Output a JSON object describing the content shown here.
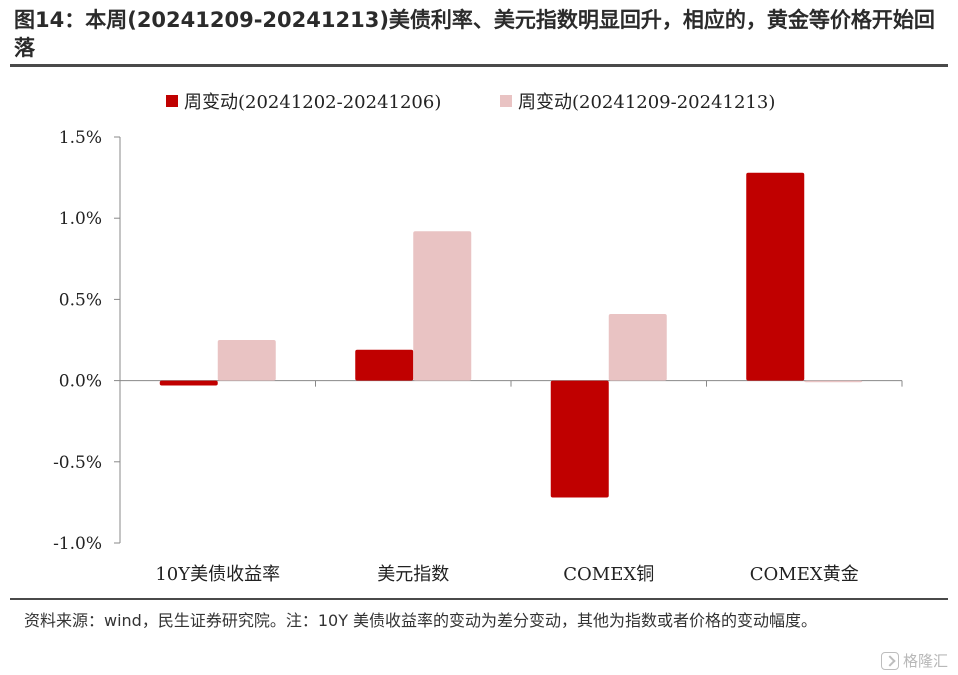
{
  "title": "图14：本周(20241209-20241213)美债利率、美元指数明显回升，相应的，黄金等价格开始回落",
  "source": "资料来源：wind，民生证券研究院。注：10Y 美债收益率的变动为差分变动，其他为指数或者价格的变动幅度。",
  "watermark": "格隆汇",
  "chart_data": {
    "type": "bar",
    "categories": [
      "10Y美债收益率",
      "美元指数",
      "COMEX铜",
      "COMEX黄金"
    ],
    "series": [
      {
        "name": "周变动(20241202-20241206)",
        "color": "#c00000",
        "values": [
          -0.03,
          0.19,
          -0.72,
          1.28
        ]
      },
      {
        "name": "周变动(20241209-20241213)",
        "color": "#e9c3c3",
        "values": [
          0.25,
          0.92,
          0.41,
          -0.01
        ]
      }
    ],
    "yticks": [
      "1.5%",
      "1.0%",
      "0.5%",
      "0.0%",
      "-0.5%",
      "-1.0%"
    ],
    "ylim": [
      -1.0,
      1.5
    ],
    "xlabel": "",
    "ylabel": "",
    "legend": "top",
    "grid": false
  }
}
